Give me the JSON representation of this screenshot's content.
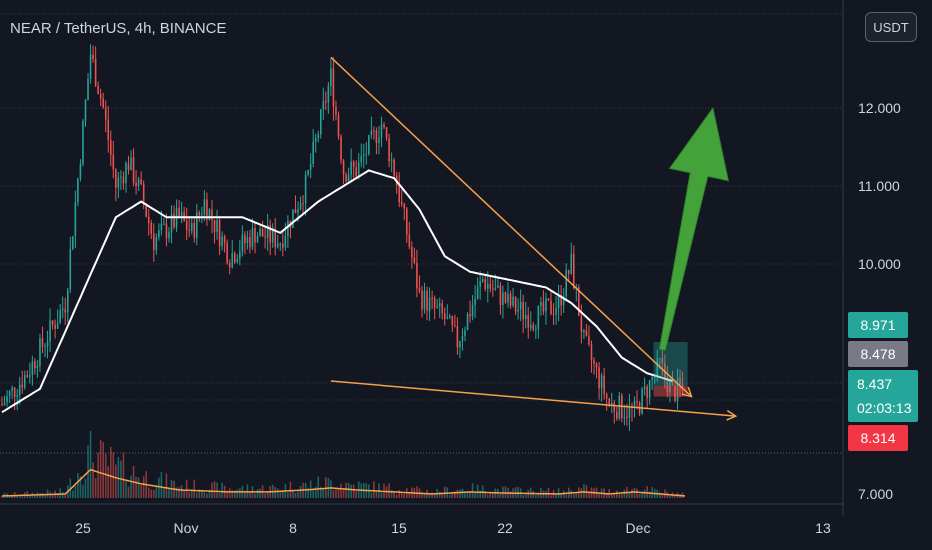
{
  "header": {
    "title": "NEAR / TetherUS, 4h, BINANCE",
    "currency_button": "USDT"
  },
  "colors": {
    "background": "#131722",
    "up": "#26a69a",
    "down": "#ef5350",
    "ma": "#ffffff",
    "trendline": "#f6a04d",
    "arrow": "#43a33a",
    "grid": "#363a45"
  },
  "chart_data": {
    "type": "candlestick",
    "symbol": "NEAR / TetherUS",
    "timeframe": "4h",
    "exchange": "BINANCE",
    "x_ticks": [
      "25",
      "Nov",
      "8",
      "15",
      "22",
      "Dec",
      "13"
    ],
    "y_ticks": [
      "12.000",
      "11.000",
      "10.000",
      "7.000"
    ],
    "y_tick_values": [
      12,
      11,
      10,
      7
    ],
    "y_range": [
      6.9,
      13.3
    ],
    "price_labels": [
      {
        "value": 8.971,
        "text": "8.971",
        "color": "#26a69a"
      },
      {
        "value": 8.478,
        "text": "8.478",
        "color": "#787b86"
      },
      {
        "value": 8.437,
        "text": "8.437",
        "color": "#26a69a",
        "sub": "02:03:13"
      },
      {
        "value": 8.314,
        "text": "8.314",
        "color": "#f23645"
      }
    ],
    "price_path": [
      [
        0,
        8.2
      ],
      [
        2,
        8.6
      ],
      [
        5,
        9.5
      ],
      [
        7,
        12.7
      ],
      [
        8,
        12.0
      ],
      [
        9,
        11.0
      ],
      [
        10,
        11.3
      ],
      [
        11,
        10.9
      ],
      [
        12,
        10.3
      ],
      [
        14,
        10.6
      ],
      [
        15,
        10.4
      ],
      [
        16,
        10.8
      ],
      [
        18,
        10.1
      ],
      [
        20,
        10.4
      ],
      [
        22,
        10.3
      ],
      [
        24,
        11.0
      ],
      [
        26,
        12.4
      ],
      [
        27,
        11.2
      ],
      [
        28,
        11.2
      ],
      [
        30,
        11.8
      ],
      [
        31,
        11.2
      ],
      [
        33,
        9.6
      ],
      [
        35,
        9.3
      ],
      [
        36,
        9.0
      ],
      [
        38,
        9.8
      ],
      [
        40,
        9.5
      ],
      [
        42,
        9.3
      ],
      [
        44,
        9.5
      ],
      [
        45,
        10.0
      ],
      [
        46,
        9.0
      ],
      [
        47,
        8.6
      ],
      [
        48,
        8.2
      ],
      [
        50,
        8.1
      ],
      [
        52,
        8.7
      ],
      [
        53,
        8.35
      ],
      [
        54,
        8.44
      ]
    ],
    "ma_path": [
      [
        0,
        8.1
      ],
      [
        3,
        8.4
      ],
      [
        6,
        9.5
      ],
      [
        9,
        10.6
      ],
      [
        11,
        10.8
      ],
      [
        13,
        10.6
      ],
      [
        16,
        10.6
      ],
      [
        19,
        10.6
      ],
      [
        22,
        10.4
      ],
      [
        25,
        10.8
      ],
      [
        27,
        11.0
      ],
      [
        29,
        11.2
      ],
      [
        31,
        11.1
      ],
      [
        33,
        10.7
      ],
      [
        35,
        10.1
      ],
      [
        37,
        9.9
      ],
      [
        40,
        9.8
      ],
      [
        43,
        9.7
      ],
      [
        45,
        9.5
      ],
      [
        47,
        9.2
      ],
      [
        49,
        8.8
      ],
      [
        51,
        8.6
      ],
      [
        53,
        8.5
      ]
    ],
    "volume_path": [
      [
        0,
        0.05
      ],
      [
        5,
        0.1
      ],
      [
        7,
        0.7
      ],
      [
        9,
        0.5
      ],
      [
        11,
        0.35
      ],
      [
        14,
        0.2
      ],
      [
        18,
        0.15
      ],
      [
        21,
        0.15
      ],
      [
        24,
        0.2
      ],
      [
        26,
        0.25
      ],
      [
        28,
        0.2
      ],
      [
        31,
        0.15
      ],
      [
        34,
        0.1
      ],
      [
        37,
        0.15
      ],
      [
        40,
        0.12
      ],
      [
        44,
        0.1
      ],
      [
        46,
        0.15
      ],
      [
        48,
        0.1
      ],
      [
        50,
        0.15
      ],
      [
        54,
        0.05
      ]
    ],
    "annotations": {
      "upper_trendline": [
        [
          26,
          12.65
        ],
        [
          54.5,
          8.3
        ]
      ],
      "lower_trendline": [
        [
          26,
          8.5
        ],
        [
          58,
          8.05
        ]
      ],
      "long_box": {
        "x0": 51.5,
        "x1": 54.2,
        "entry": 8.44,
        "target": 9.0,
        "stop": 8.3
      },
      "arrow": {
        "from": [
          52.2,
          8.9
        ],
        "to": [
          56.2,
          12.0
        ]
      }
    },
    "grid": true
  }
}
